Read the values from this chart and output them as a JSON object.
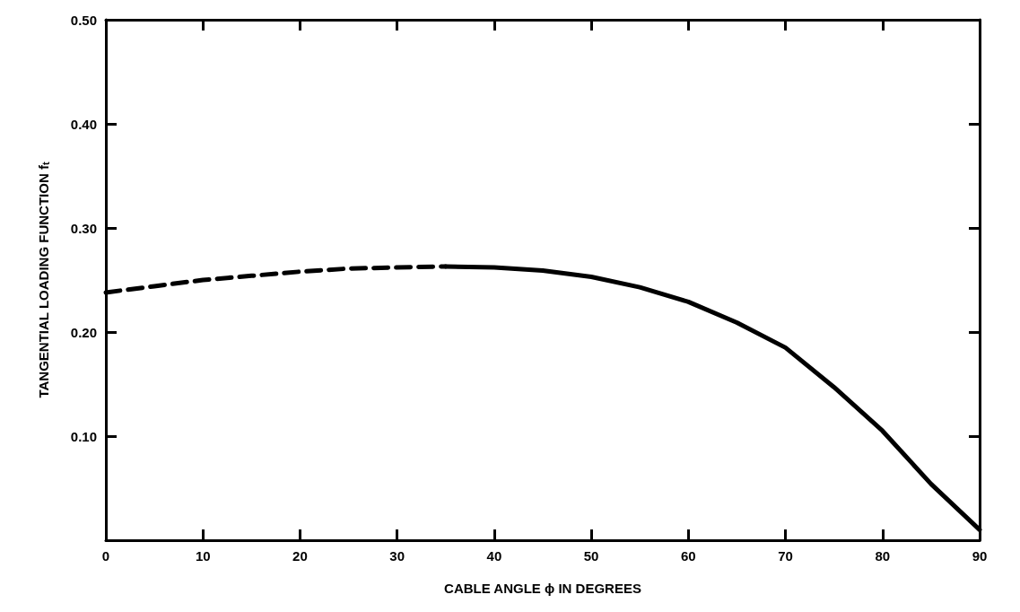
{
  "chart_data": {
    "type": "line",
    "xlabel": "CABLE ANGLE ϕ IN DEGREES",
    "ylabel": "TANGENTIAL LOADING FUNCTION f$_{t}$",
    "xlim": [
      0,
      90
    ],
    "xticks": [
      0,
      10,
      20,
      30,
      40,
      50,
      60,
      70,
      80,
      90
    ],
    "ylim": [
      0,
      0.5
    ],
    "yticks": [
      {
        "value": 0.1,
        "label": "0.10"
      },
      {
        "value": 0.2,
        "label": "0.20"
      },
      {
        "value": 0.3,
        "label": "0.30"
      },
      {
        "value": 0.4,
        "label": "0.40"
      },
      {
        "value": 0.5,
        "label": "0.50"
      }
    ],
    "grid": false,
    "marker": "none",
    "series": [
      {
        "color": "#000000",
        "line_style": "dashed",
        "x": [
          0,
          5,
          10,
          15,
          20,
          25,
          30,
          35
        ],
        "values": [
          0.238,
          0.244,
          0.25,
          0.254,
          0.258,
          0.261,
          0.262,
          0.263
        ]
      },
      {
        "color": "#000000",
        "line_style": "solid",
        "x": [
          35,
          40,
          45,
          50,
          55,
          60,
          65,
          70,
          75,
          80,
          85,
          90
        ],
        "values": [
          0.263,
          0.262,
          0.259,
          0.253,
          0.243,
          0.229,
          0.209,
          0.185,
          0.147,
          0.105,
          0.054,
          0.01
        ]
      }
    ]
  }
}
